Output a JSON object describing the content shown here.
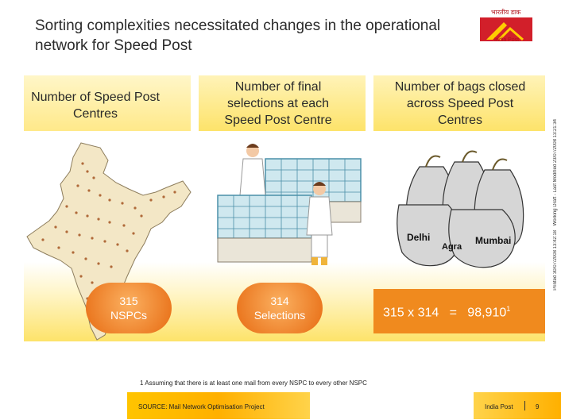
{
  "header": {
    "title": "Sorting complexities necessitated changes in the operational network for Speed Post"
  },
  "logo": {
    "caption": "India Post",
    "icon": "india-post-logo-icon"
  },
  "columns": [
    {
      "heading": "Number of Speed Post Centres",
      "pill": "315 NSPCs",
      "illustration": "india-map-icon"
    },
    {
      "heading": "Number of final selections at each Speed Post Centre",
      "pill": "314 Selections",
      "illustration": "sorting-workers-icon"
    },
    {
      "heading": "Number of bags closed across Speed Post Centres",
      "formula": "315 x 314   =   98,910",
      "formula_sup": "1",
      "illustration": "mail-bags-icon",
      "bag_labels": [
        "Delhi",
        "Agra",
        "Mumbai"
      ]
    }
  ],
  "footnote": "1 Assuming that there is at least one mail from every NSPC to every other NSPC",
  "footer": {
    "source": "SOURCE: Mail Network Optimisation Project",
    "org": "India Post",
    "page": "9"
  },
  "side_text": [
    "Working Draft - Last Modified 23/07/2008 13:21:34",
    "Printed 30/07/2008 13:42:18"
  ]
}
